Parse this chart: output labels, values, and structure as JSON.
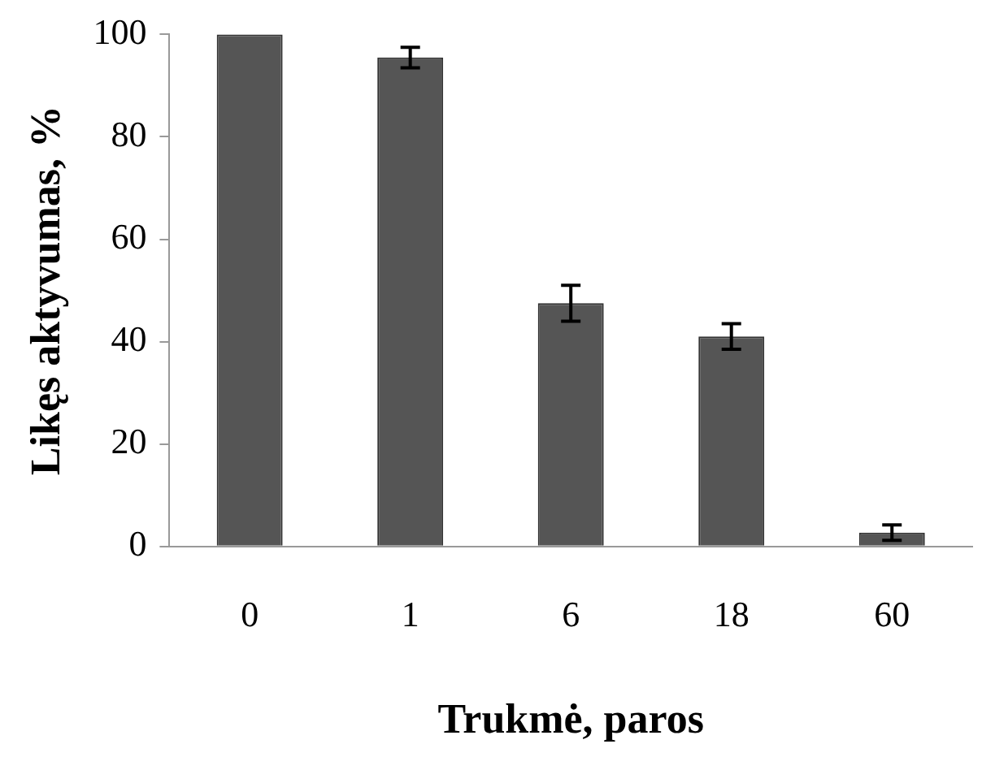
{
  "chart_data": {
    "type": "bar",
    "xlabel": "Trukmė, paros",
    "ylabel": "Likęs aktyvumas, %",
    "categories": [
      "0",
      "1",
      "6",
      "18",
      "60"
    ],
    "values": [
      100,
      95.5,
      47.5,
      41,
      2.7
    ],
    "errors": [
      null,
      2,
      3.5,
      2.5,
      1.5
    ],
    "color": "#555555",
    "ylim": [
      0,
      100
    ],
    "yticks": [
      0,
      20,
      40,
      60,
      80,
      100
    ],
    "grid": false,
    "legend": false
  }
}
